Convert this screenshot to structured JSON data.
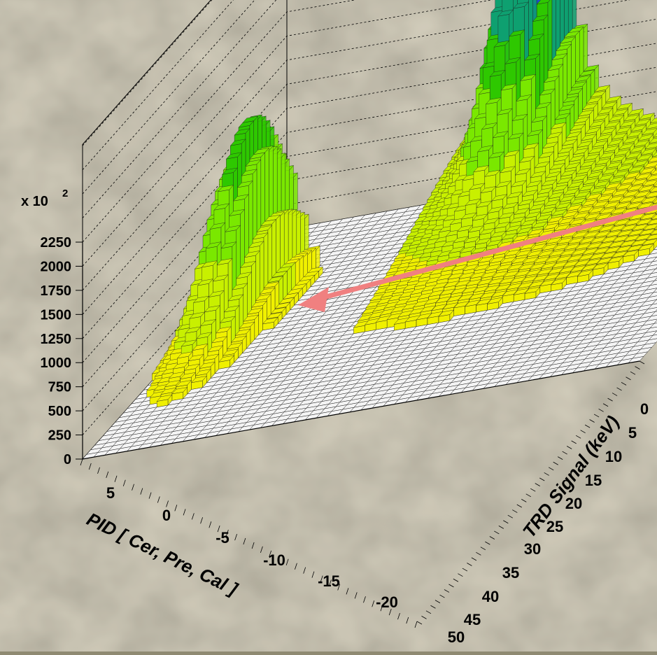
{
  "chart_data": {
    "type": "lego3d",
    "title": "",
    "zlabel_multiplier": "x 10",
    "zlabel_exponent": "2",
    "z_ticks": [
      "0",
      "250",
      "500",
      "750",
      "1000",
      "1250",
      "1500",
      "1750",
      "2000",
      "2250"
    ],
    "zlim": [
      0,
      2250
    ],
    "xlabel": "PID [ Cer, Pre, Cal ]",
    "x_ticks": [
      "5",
      "0",
      "-5",
      "-10",
      "-15",
      "-20"
    ],
    "ylabel": "TRD Signal (keV)",
    "y_ticks": [
      "0",
      "5",
      "10",
      "15",
      "20",
      "25",
      "30",
      "35",
      "40",
      "45",
      "50"
    ],
    "grid": true,
    "colormap": [
      "#f0f000",
      "#c8f000",
      "#7ae800",
      "#2ec800",
      "#0ea070",
      "#1f4dd0"
    ],
    "peaks": [
      {
        "name_visible": false,
        "pid_center": 2.5,
        "trd_center": 24,
        "max_value": 1950,
        "note": "broad ridge"
      },
      {
        "name_visible": false,
        "pid_center": -6,
        "trd_center": 4,
        "max_value": 3150,
        "note": "sharp peak"
      }
    ],
    "annotation_arrow_color": "#f08080"
  }
}
